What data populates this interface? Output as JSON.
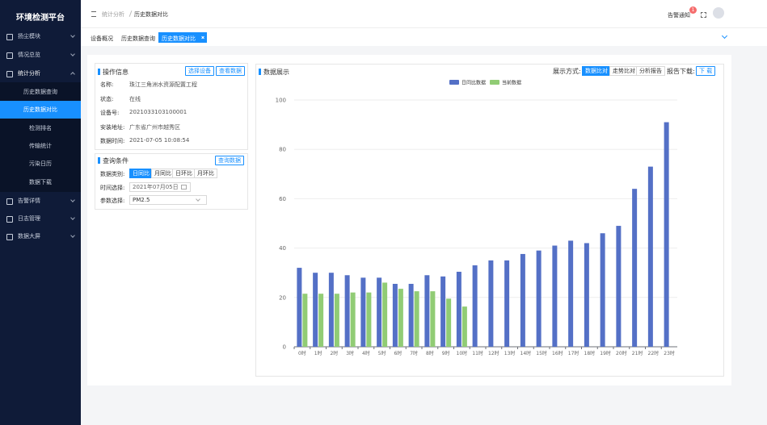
{
  "sidebar": {
    "title": "环境检测平台",
    "menu": [
      {
        "label": "扬尘模块"
      },
      {
        "label": "情况总览"
      },
      {
        "label": "统计分析",
        "children": [
          "历史数据查询",
          "历史数据对比",
          "检测排名",
          "传输统计",
          "污染日历",
          "数据下载"
        ]
      },
      {
        "label": "告警详情"
      },
      {
        "label": "日志管理"
      },
      {
        "label": "数据大屏"
      }
    ]
  },
  "header": {
    "breadcrumb": [
      "统计分析",
      "历史数据对比"
    ],
    "notice": "告警通知",
    "badge": "1"
  },
  "tabs": [
    "设备概况",
    "历史数据查询",
    "历史数据对比"
  ],
  "info_panel": {
    "title": "操作信息",
    "buttons": [
      "选择设备",
      "查看数据"
    ],
    "rows": [
      [
        "名称:",
        "珠江三角洲水资源配置工程"
      ],
      [
        "状态:",
        "在线"
      ],
      [
        "设备号:",
        "2021033103100001"
      ],
      [
        "安装地址:",
        "广东省广州市越秀区"
      ],
      [
        "数据时间:",
        "2021-07-05 10:08:54"
      ]
    ]
  },
  "query_panel": {
    "title": "查询条件",
    "button": "查询数据",
    "type_label": "数据类别:",
    "type_options": [
      "日同比",
      "月同比",
      "日环比",
      "月环比"
    ],
    "time_label": "时间选择:",
    "time_value": "2021年07月05日",
    "param_label": "参数选择:",
    "param_value": "PM2.5"
  },
  "chart_panel": {
    "title": "数据展示",
    "mode_label": "展示方式:",
    "modes": [
      "数据比对",
      "走势比对",
      "分析报告"
    ],
    "download_label": "报告下载:",
    "download_button": "下 载"
  },
  "chart_data": {
    "type": "bar",
    "categories": [
      "0时",
      "1时",
      "2时",
      "3时",
      "4时",
      "5时",
      "6时",
      "7时",
      "8时",
      "9时",
      "10时",
      "11时",
      "12时",
      "13时",
      "14时",
      "15时",
      "16时",
      "17时",
      "18时",
      "19时",
      "20时",
      "21时",
      "22时",
      "23时"
    ],
    "series": [
      {
        "name": "日同比数据",
        "color": "#5470c6",
        "values": [
          32,
          30,
          30,
          29,
          28,
          28,
          25.5,
          25.5,
          29,
          28.5,
          30.4,
          33,
          35,
          35,
          37.6,
          39,
          41,
          43,
          42,
          46,
          49,
          64,
          73,
          91
        ]
      },
      {
        "name": "当前数据",
        "color": "#91cc75",
        "values": [
          21.5,
          21.5,
          21.5,
          22,
          22,
          26,
          23.5,
          22.5,
          22.5,
          19.5,
          16.3,
          null,
          null,
          null,
          null,
          null,
          null,
          null,
          null,
          null,
          null,
          null,
          null,
          null
        ]
      }
    ],
    "ylim": [
      0,
      100
    ],
    "yticks": [
      0,
      20,
      40,
      60,
      80,
      100
    ],
    "grid": true,
    "legend": "top"
  }
}
